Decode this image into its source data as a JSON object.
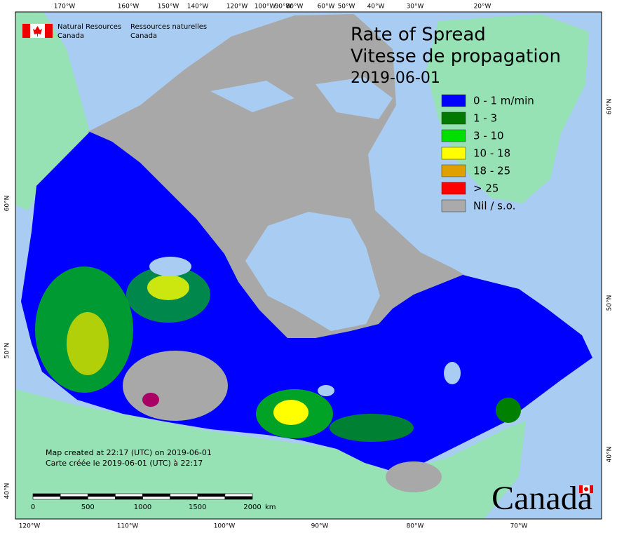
{
  "header": {
    "agency_en": [
      "Natural Resources",
      "Canada"
    ],
    "agency_fr": [
      "Ressources naturelles",
      "Canada"
    ]
  },
  "title": {
    "en": "Rate of Spread",
    "fr": "Vitesse de propagation",
    "date": "2019-06-01"
  },
  "legend": [
    {
      "label": "0 - 1 m/min",
      "color": "#0000ff"
    },
    {
      "label": "1 - 3",
      "color": "#007a00"
    },
    {
      "label": "3 - 10",
      "color": "#00e000"
    },
    {
      "label": "10 - 18",
      "color": "#ffff00"
    },
    {
      "label": "18 - 25",
      "color": "#e0a000"
    },
    {
      "label": "> 25",
      "color": "#ff0000"
    },
    {
      "label": "Nil / s.o.",
      "color": "#aaaaaa"
    }
  ],
  "top_longitude_labels": [
    "170°W",
    "160°W",
    "150°W",
    "140°W",
    "120°W",
    "100°W",
    "90°W",
    "80°W",
    "60°W",
    "50°W",
    "40°W",
    "30°W",
    "20°W"
  ],
  "bottom_longitude_labels": [
    "120°W",
    "110°W",
    "100°W",
    "90°W",
    "80°W",
    "70°W"
  ],
  "left_latitude_labels": [
    "60°N",
    "50°N",
    "40°N"
  ],
  "right_latitude_labels": [
    "60°N",
    "50°N",
    "40°N"
  ],
  "notes": [
    "Map created at 22:17 (UTC) on 2019-06-01",
    "Carte créée le 2019-06-01 (UTC) à 22:17"
  ],
  "scale_bar": {
    "labels": [
      "0",
      "500",
      "1000",
      "1500",
      "2000"
    ],
    "unit": "km"
  },
  "wordmark": "Canada"
}
